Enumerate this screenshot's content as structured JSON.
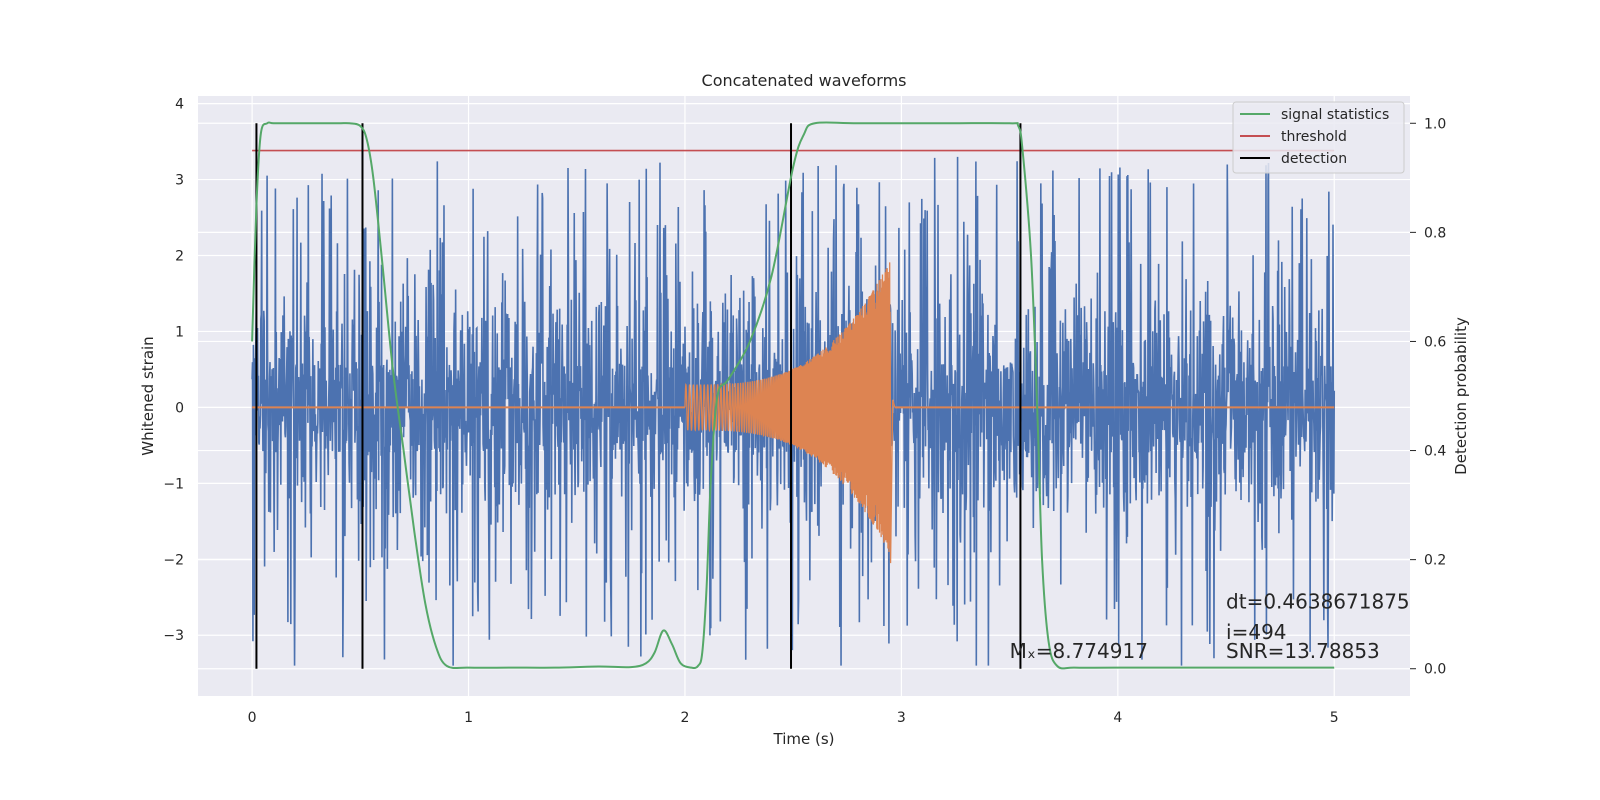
{
  "chart_data": {
    "type": "line",
    "title": "Concatenated waveforms",
    "xlabel": "Time (s)",
    "ylabel": "Whitened strain",
    "y2label": "Detection probability",
    "xlim": [
      -0.25,
      5.35
    ],
    "ylim": [
      -3.8,
      4.1
    ],
    "y2lim": [
      -0.05,
      1.05
    ],
    "x_ticks": [
      0,
      1,
      2,
      3,
      4,
      5
    ],
    "y_ticks": [
      -3,
      -2,
      -1,
      0,
      1,
      2,
      3,
      4
    ],
    "y2_ticks": [
      0.0,
      0.2,
      0.4,
      0.6,
      0.8,
      1.0
    ],
    "x_tick_labels": [
      "0",
      "1",
      "2",
      "3",
      "4",
      "5"
    ],
    "y_tick_labels": [
      "−3",
      "−2",
      "−1",
      "0",
      "1",
      "2",
      "3",
      "4"
    ],
    "y2_tick_labels": [
      "0.0",
      "0.2",
      "0.4",
      "0.6",
      "0.8",
      "1.0"
    ],
    "grid": true,
    "legend_position": "top-right",
    "legend": [
      {
        "label": "signal statistics",
        "color": "#55a868"
      },
      {
        "label": "threshold",
        "color": "#c44e52"
      },
      {
        "label": "detection",
        "color": "#000000"
      }
    ],
    "colors": {
      "strain": "#4c72b0",
      "injected": "#dd8452",
      "signal_statistics": "#55a868",
      "threshold": "#c44e52",
      "detection": "#000000",
      "axes_bg": "#eaeaf2",
      "grid": "#ffffff"
    },
    "series": [
      {
        "axis": "right",
        "kind": "signal statistics",
        "x": [
          0.0,
          0.02,
          0.04,
          0.07,
          0.1,
          0.2,
          0.3,
          0.4,
          0.45,
          0.5,
          0.53,
          0.56,
          0.6,
          0.65,
          0.7,
          0.75,
          0.8,
          0.85,
          0.9,
          1.0,
          1.2,
          1.4,
          1.6,
          1.75,
          1.82,
          1.86,
          1.9,
          1.94,
          1.98,
          2.03,
          2.06,
          2.08,
          2.1,
          2.12,
          2.15,
          2.2,
          2.3,
          2.4,
          2.5,
          2.55,
          2.6,
          2.8,
          3.2,
          3.5,
          3.54,
          3.56,
          3.6,
          3.63,
          3.65,
          3.68,
          3.72,
          3.8,
          4.0,
          4.5,
          5.0
        ],
        "y": [
          0.6,
          0.85,
          0.98,
          1.0,
          1.0,
          1.0,
          1.0,
          1.0,
          1.0,
          0.995,
          0.97,
          0.9,
          0.75,
          0.55,
          0.4,
          0.25,
          0.12,
          0.04,
          0.005,
          0.002,
          0.002,
          0.002,
          0.004,
          0.003,
          0.01,
          0.03,
          0.07,
          0.045,
          0.01,
          0.002,
          0.005,
          0.03,
          0.15,
          0.35,
          0.5,
          0.53,
          0.6,
          0.72,
          0.92,
          0.98,
          1.0,
          1.0,
          1.0,
          1.0,
          0.995,
          0.95,
          0.75,
          0.45,
          0.2,
          0.05,
          0.005,
          0.002,
          0.002,
          0.002,
          0.002
        ]
      },
      {
        "axis": "right",
        "kind": "threshold",
        "x": [
          0.0,
          5.0
        ],
        "y": [
          0.95,
          0.95
        ]
      }
    ],
    "strain_noise": {
      "x_range": [
        0.0,
        5.0
      ],
      "core_amplitude": 0.6,
      "burst_max": 3.3,
      "burst_min": -3.4
    },
    "injected_waveform": {
      "baseline": 0.0,
      "x_range": [
        0.0,
        5.0
      ],
      "chirp_start": 2.0,
      "chirp_end": 2.95,
      "start_amplitude": 0.3,
      "peak_amplitude": 1.95,
      "peak_min": -2.05
    },
    "detections": [
      0.02,
      0.51,
      2.49,
      3.55
    ],
    "detection_range": [
      0.0,
      1.0
    ],
    "annotations": [
      {
        "text": "Mₓ=8.774917",
        "x": 3.5,
        "y": -3.3
      },
      {
        "text": "dt=0.4638671875",
        "x": 4.5,
        "y": -2.65
      },
      {
        "text": " i=494",
        "x": 4.5,
        "y": -3.05
      },
      {
        "text": "SNR=13.78853",
        "x": 4.5,
        "y": -3.3
      }
    ]
  }
}
